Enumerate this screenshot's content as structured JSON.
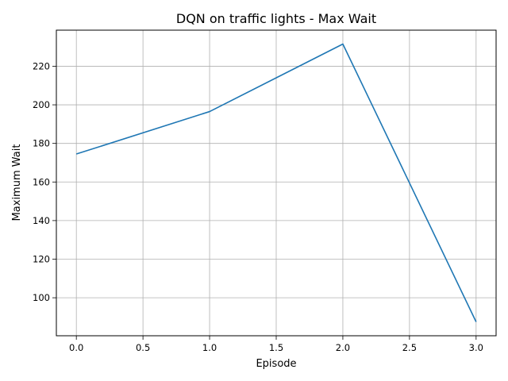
{
  "chart_data": {
    "type": "line",
    "title": "DQN on traffic lights - Max Wait",
    "xlabel": "Episode",
    "ylabel": "Maximum Wait",
    "x": [
      0,
      1,
      2,
      3
    ],
    "series": [
      {
        "values": [
          174.5,
          196.5,
          231.5,
          87.5
        ],
        "color": "#1f77b4"
      }
    ],
    "xlim": [
      -0.15,
      3.15
    ],
    "ylim": [
      80.3,
      238.7
    ],
    "xticks": [
      0.0,
      0.5,
      1.0,
      1.5,
      2.0,
      2.5,
      3.0
    ],
    "xtick_labels": [
      "0.0",
      "0.5",
      "1.0",
      "1.5",
      "2.0",
      "2.5",
      "3.0"
    ],
    "yticks": [
      100,
      120,
      140,
      160,
      180,
      200,
      220
    ],
    "ytick_labels": [
      "100",
      "120",
      "140",
      "160",
      "180",
      "200",
      "220"
    ],
    "grid": true,
    "legend": false
  }
}
